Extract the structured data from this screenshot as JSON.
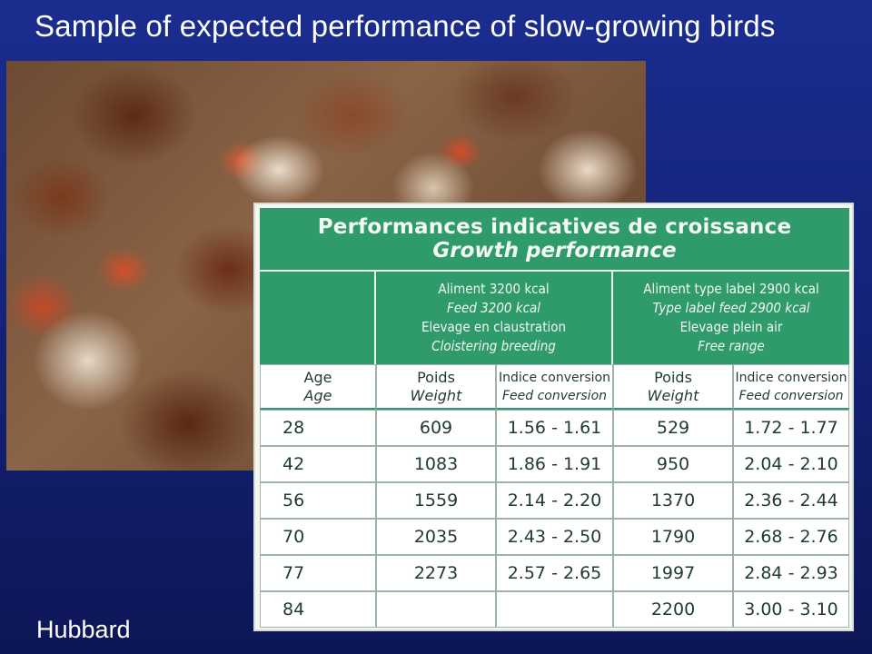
{
  "slide": {
    "title": "Sample of expected performance of slow-growing birds",
    "credit": "Hubbard"
  },
  "table": {
    "title_fr": "Performances indicatives de croissance",
    "title_en": "Growth performance",
    "group1": [
      "Aliment 3200 kcal",
      "Feed 3200 kcal",
      "Elevage en claustration",
      "Cloistering breeding"
    ],
    "group2": [
      "Aliment type label 2900 kcal",
      "Type label feed 2900 kcal",
      "Elevage plein air",
      "Free range"
    ],
    "col_headers": [
      {
        "fr": "Age",
        "en": "Age"
      },
      {
        "fr": "Poids",
        "en": "Weight"
      },
      {
        "fr": "Indice conversion",
        "en": "Feed conversion"
      },
      {
        "fr": "Poids",
        "en": "Weight"
      },
      {
        "fr": "Indice conversion",
        "en": "Feed conversion"
      }
    ],
    "rows": [
      [
        "28",
        "609",
        "1.56 - 1.61",
        "529",
        "1.72 - 1.77"
      ],
      [
        "42",
        "1083",
        "1.86 - 1.91",
        "950",
        "2.04 - 2.10"
      ],
      [
        "56",
        "1559",
        "2.14 - 2.20",
        "1370",
        "2.36 - 2.44"
      ],
      [
        "70",
        "2035",
        "2.43 - 2.50",
        "1790",
        "2.68 - 2.76"
      ],
      [
        "77",
        "2273",
        "2.57 - 2.65",
        "1997",
        "2.84 - 2.93"
      ],
      [
        "84",
        "",
        "",
        "2200",
        "3.00 - 3.10"
      ]
    ]
  },
  "colors": {
    "background": "#15247a",
    "table_green": "#2f9a6a",
    "title_text": "#ffffff"
  }
}
